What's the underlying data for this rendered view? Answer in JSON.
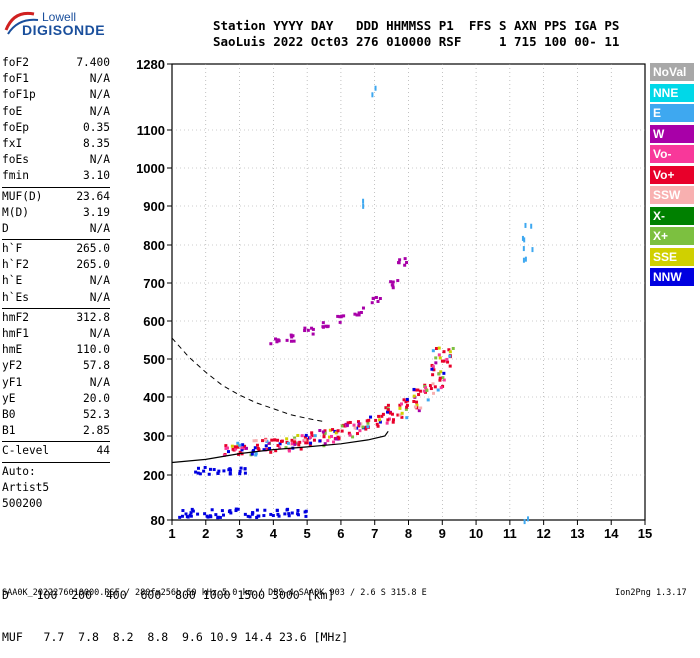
{
  "logo": {
    "brand": "Lowell",
    "product": "DIGISONDE"
  },
  "header": {
    "line1": "Station YYYY DAY   DDD HHMMSS P1  FFS S AXN PPS IGA PS",
    "line2": "SaoLuis 2022 Oct03 276 010000 RSF     1 715 100 00- 11"
  },
  "params": [
    {
      "label": "foF2",
      "value": "7.400"
    },
    {
      "label": "foF1",
      "value": "N/A"
    },
    {
      "label": "foF1p",
      "value": "N/A"
    },
    {
      "label": "foE",
      "value": "N/A"
    },
    {
      "label": "foEp",
      "value": "0.35"
    },
    {
      "label": "fxI",
      "value": "8.35"
    },
    {
      "label": "foEs",
      "value": "N/A"
    },
    {
      "label": "fmin",
      "value": "3.10"
    },
    {
      "label": "MUF(D)",
      "value": "23.64"
    },
    {
      "label": "M(D)",
      "value": "3.19"
    },
    {
      "label": "D",
      "value": "N/A"
    },
    {
      "label": "h`F",
      "value": "265.0"
    },
    {
      "label": "h`F2",
      "value": "265.0"
    },
    {
      "label": "h`E",
      "value": "N/A"
    },
    {
      "label": "h`Es",
      "value": "N/A"
    },
    {
      "label": "hmF2",
      "value": "312.8"
    },
    {
      "label": "hmF1",
      "value": "N/A"
    },
    {
      "label": "hmE",
      "value": "110.0"
    },
    {
      "label": "yF2",
      "value": "57.8"
    },
    {
      "label": "yF1",
      "value": "N/A"
    },
    {
      "label": "yE",
      "value": "20.0"
    },
    {
      "label": "B0",
      "value": "52.3"
    },
    {
      "label": "B1",
      "value": "2.85"
    },
    {
      "label": "C-level",
      "value": "44"
    }
  ],
  "autoscaling": {
    "auto": "Auto:",
    "artist": "Artist5",
    "version": "500200"
  },
  "legend": [
    {
      "label": "NoVal",
      "color": "#a8a8a8"
    },
    {
      "label": "NNE",
      "color": "#00d8e8"
    },
    {
      "label": "E",
      "color": "#3ea8f0"
    },
    {
      "label": "W",
      "color": "#a800a8"
    },
    {
      "label": "Vo-",
      "color": "#f8389a"
    },
    {
      "label": "Vo+",
      "color": "#e8002a"
    },
    {
      "label": "SSW",
      "color": "#f8b0b0"
    },
    {
      "label": "X-",
      "color": "#008000"
    },
    {
      "label": "X+",
      "color": "#7cc040"
    },
    {
      "label": "SSE",
      "color": "#d0d000"
    },
    {
      "label": "NNW",
      "color": "#0000e0"
    }
  ],
  "dmuf": {
    "d_line": "D    100  200  400  600  800 1000 1500 3000 [km]",
    "muf_line": "MUF   7.7  7.8  8.2  8.8  9.6 10.9 14.4 23.6 [MHz]"
  },
  "footer": {
    "left": "SAA0K_2022276010000.RSF / 280fx256h 50 kHz 5.0 km / DPS-4 SAA0K 903 / 2.6 S 315.8 E",
    "right": "Ion2Png 1.3.17"
  },
  "chart_data": {
    "type": "scatter",
    "title": "",
    "xlabel": "",
    "ylabel": "",
    "xlim": [
      1,
      15
    ],
    "ylim": [
      80,
      1280
    ],
    "xticks": [
      "1",
      "2",
      "3",
      "4",
      "5",
      "6",
      "7",
      "8",
      "9",
      "10",
      "11",
      "12",
      "13",
      "14",
      "15"
    ],
    "yticks": [
      "80",
      "200",
      "300",
      "400",
      "500",
      "600",
      "700",
      "800",
      "900",
      "1000",
      "1100",
      "1280"
    ],
    "grid": true,
    "series": [
      {
        "color_key": "Vo+",
        "points": [
          [
            2.8,
            270
          ],
          [
            3.2,
            272
          ],
          [
            3.6,
            275
          ],
          [
            4.0,
            278
          ],
          [
            4.4,
            283
          ],
          [
            4.8,
            288
          ],
          [
            5.2,
            295
          ],
          [
            5.6,
            305
          ],
          [
            6.0,
            315
          ],
          [
            6.4,
            325
          ],
          [
            6.8,
            335
          ],
          [
            7.2,
            350
          ],
          [
            7.6,
            365
          ],
          [
            8.0,
            385
          ],
          [
            8.4,
            410
          ],
          [
            8.7,
            440
          ],
          [
            8.9,
            480
          ],
          [
            9.0,
            520
          ]
        ]
      },
      {
        "color_key": "W",
        "points": [
          [
            4.0,
            550
          ],
          [
            4.5,
            560
          ],
          [
            5.0,
            575
          ],
          [
            5.5,
            590
          ],
          [
            6.0,
            610
          ],
          [
            6.5,
            630
          ],
          [
            7.0,
            660
          ],
          [
            7.5,
            700
          ],
          [
            7.8,
            760
          ]
        ]
      },
      {
        "color_key": "NNW",
        "points": [
          [
            1.3,
            100
          ],
          [
            1.6,
            102
          ],
          [
            2.0,
            101
          ],
          [
            2.4,
            100
          ],
          [
            2.8,
            103
          ],
          [
            3.2,
            101
          ],
          [
            3.6,
            100
          ],
          [
            4.0,
            104
          ],
          [
            4.4,
            102
          ],
          [
            4.8,
            100
          ],
          [
            1.8,
            215
          ],
          [
            2.2,
            213
          ],
          [
            2.6,
            212
          ],
          [
            3.0,
            214
          ]
        ]
      },
      {
        "color_key": "E",
        "points": [
          [
            7.0,
            1210
          ],
          [
            6.6,
            910
          ],
          [
            11.5,
            850
          ],
          [
            11.5,
            820
          ],
          [
            11.5,
            790
          ],
          [
            11.5,
            760
          ],
          [
            11.5,
            90
          ]
        ]
      }
    ],
    "profile_curve": [
      [
        1.0,
        232
      ],
      [
        2.0,
        240
      ],
      [
        3.0,
        255
      ],
      [
        4.0,
        265
      ],
      [
        5.0,
        272
      ],
      [
        6.0,
        280
      ],
      [
        6.8,
        290
      ],
      [
        7.3,
        300
      ],
      [
        7.4,
        312
      ]
    ],
    "profile_dashed": [
      [
        1.0,
        555
      ],
      [
        1.5,
        505
      ],
      [
        2.0,
        465
      ],
      [
        2.5,
        430
      ],
      [
        3.0,
        405
      ],
      [
        3.5,
        385
      ],
      [
        4.0,
        370
      ],
      [
        4.5,
        355
      ],
      [
        5.0,
        345
      ],
      [
        5.5,
        337
      ]
    ]
  }
}
